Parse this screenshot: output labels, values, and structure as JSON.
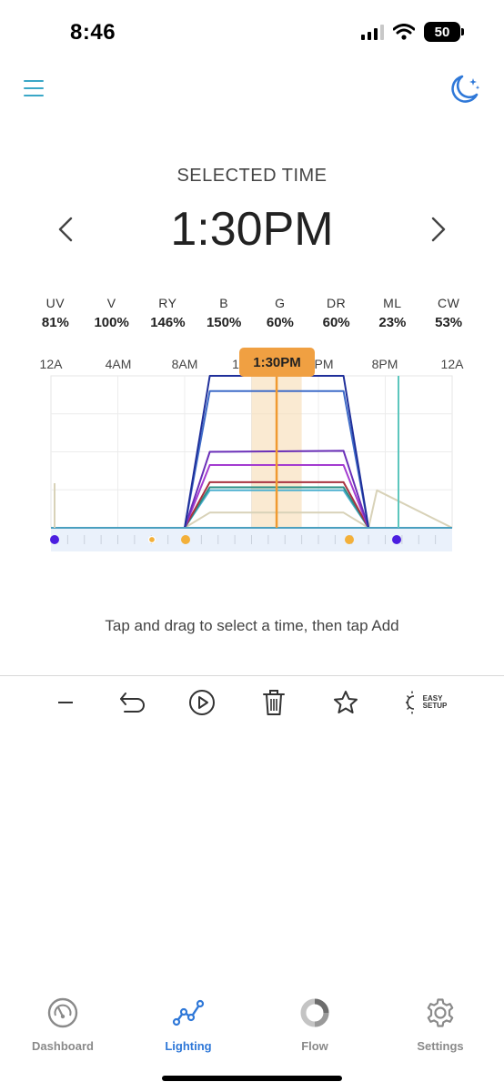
{
  "status": {
    "time": "8:46",
    "battery": "50"
  },
  "header": {
    "selected_label": "SELECTED TIME",
    "selected_time": "1:30PM"
  },
  "channels": [
    {
      "name": "UV",
      "value": "81%"
    },
    {
      "name": "V",
      "value": "100%"
    },
    {
      "name": "RY",
      "value": "146%"
    },
    {
      "name": "B",
      "value": "150%"
    },
    {
      "name": "G",
      "value": "60%"
    },
    {
      "name": "DR",
      "value": "60%"
    },
    {
      "name": "ML",
      "value": "23%"
    },
    {
      "name": "CW",
      "value": "53%"
    }
  ],
  "axis": {
    "labels": [
      "12A",
      "4AM",
      "8AM",
      "1",
      "PM",
      "8PM",
      "12A"
    ],
    "chip": "1:30PM"
  },
  "hint": "Tap and drag to select a time, then tap Add",
  "toolbar": {
    "easy_line1": "EASY",
    "easy_line2": "SETUP"
  },
  "tabs": [
    {
      "label": "Dashboard"
    },
    {
      "label": "Lighting"
    },
    {
      "label": "Flow"
    },
    {
      "label": "Settings"
    }
  ],
  "colors": {
    "accent": "#2f78d8",
    "selection": "#f0a042",
    "menu": "#3aa7c7"
  },
  "chart_data": {
    "type": "line",
    "x_unit": "hour",
    "x_range": [
      0,
      24
    ],
    "y_range": [
      0,
      150
    ],
    "selected_hour": 13.5,
    "series": [
      {
        "color": "#1f2f9a",
        "points": [
          [
            0,
            0
          ],
          [
            8,
            0
          ],
          [
            9.5,
            150
          ],
          [
            17.5,
            150
          ],
          [
            19,
            0
          ],
          [
            24,
            0
          ]
        ]
      },
      {
        "color": "#3f6cc8",
        "points": [
          [
            0,
            0
          ],
          [
            8,
            0
          ],
          [
            9.5,
            135
          ],
          [
            17.5,
            135
          ],
          [
            19,
            0
          ],
          [
            24,
            0
          ]
        ]
      },
      {
        "color": "#6a2fb8",
        "points": [
          [
            0,
            0
          ],
          [
            8,
            0
          ],
          [
            9.5,
            75
          ],
          [
            17.5,
            76
          ],
          [
            19,
            0
          ],
          [
            24,
            0
          ]
        ]
      },
      {
        "color": "#a43bd0",
        "points": [
          [
            0,
            0
          ],
          [
            8,
            0
          ],
          [
            9.5,
            62
          ],
          [
            17.5,
            62
          ],
          [
            19,
            0
          ],
          [
            24,
            0
          ]
        ]
      },
      {
        "color": "#a8323f",
        "points": [
          [
            0,
            0
          ],
          [
            8,
            0
          ],
          [
            9.5,
            45
          ],
          [
            17.5,
            45
          ],
          [
            19,
            0
          ],
          [
            24,
            0
          ]
        ]
      },
      {
        "color": "#2a8f86",
        "points": [
          [
            0,
            0
          ],
          [
            8,
            0
          ],
          [
            9.5,
            40
          ],
          [
            17.5,
            40
          ],
          [
            19,
            0
          ],
          [
            24,
            0
          ]
        ]
      },
      {
        "color": "#4db0d0",
        "points": [
          [
            0,
            0
          ],
          [
            8,
            0
          ],
          [
            9.5,
            37
          ],
          [
            17.5,
            37
          ],
          [
            19,
            0
          ],
          [
            24,
            0
          ]
        ]
      },
      {
        "color": "#d8d2b8",
        "points": [
          [
            0,
            0
          ],
          [
            8,
            0
          ],
          [
            9.5,
            15
          ],
          [
            17.5,
            15
          ],
          [
            19,
            0
          ],
          [
            19.5,
            37
          ],
          [
            24,
            0
          ]
        ]
      }
    ]
  }
}
